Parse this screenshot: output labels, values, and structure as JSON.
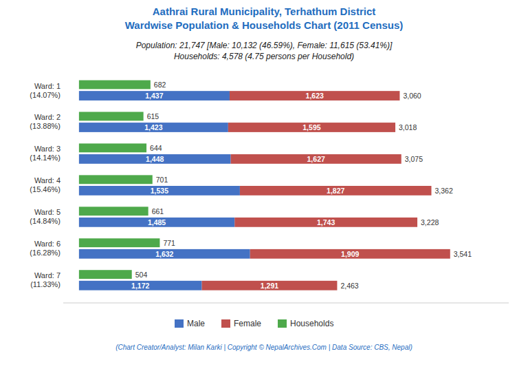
{
  "chart_data": {
    "type": "bar",
    "orientation": "horizontal",
    "title": [
      "Aathrai Rural Municipality, Terhathum District",
      "Wardwise Population & Households Chart (2011 Census)"
    ],
    "subtitle": [
      "Population: 21,747 [Male: 10,132 (46.59%), Female: 11,615 (53.41%)]",
      "Households: 4,578 (4.75 persons per Household)"
    ],
    "annotations": [
      "(Chart Creator/Analyst: Milan Karki | Copyright © NepalArchives.Com | Data Source: CBS, Nepal)"
    ],
    "categories": [
      [
        "Ward: 1",
        "(14.07%)"
      ],
      [
        "Ward: 2",
        "(13.88%)"
      ],
      [
        "Ward: 3",
        "(14.14%)"
      ],
      [
        "Ward: 4",
        "(15.46%)"
      ],
      [
        "Ward: 5",
        "(14.84%)"
      ],
      [
        "Ward: 6",
        "(16.28%)"
      ],
      [
        "Ward: 7",
        "(11.33%)"
      ]
    ],
    "series": [
      {
        "name": "Male",
        "color": "#4472C4",
        "stacked": true,
        "values": [
          1437,
          1423,
          1448,
          1535,
          1485,
          1632,
          1172
        ],
        "value_labels": [
          "1,437",
          "1,423",
          "1,448",
          "1,535",
          "1,485",
          "1,632",
          "1,172"
        ]
      },
      {
        "name": "Female",
        "color": "#C0504D",
        "stacked": true,
        "values": [
          1623,
          1595,
          1627,
          1827,
          1743,
          1909,
          1291
        ],
        "value_labels": [
          "1,623",
          "1,595",
          "1,627",
          "1,827",
          "1,743",
          "1,909",
          "1,291"
        ]
      },
      {
        "name": "Households",
        "color": "#4EA94B",
        "stacked": false,
        "values": [
          682,
          615,
          644,
          701,
          661,
          771,
          504
        ]
      }
    ],
    "totals": [
      3060,
      3018,
      3075,
      3362,
      3228,
      3541,
      2463
    ],
    "total_labels": [
      "3,060",
      "3,018",
      "3,075",
      "3,362",
      "3,228",
      "3,541",
      "2,463"
    ],
    "xlim": [
      -150,
      4100
    ],
    "data_labels": true,
    "tick_labels": false,
    "grid": false,
    "legend": "bottom"
  }
}
